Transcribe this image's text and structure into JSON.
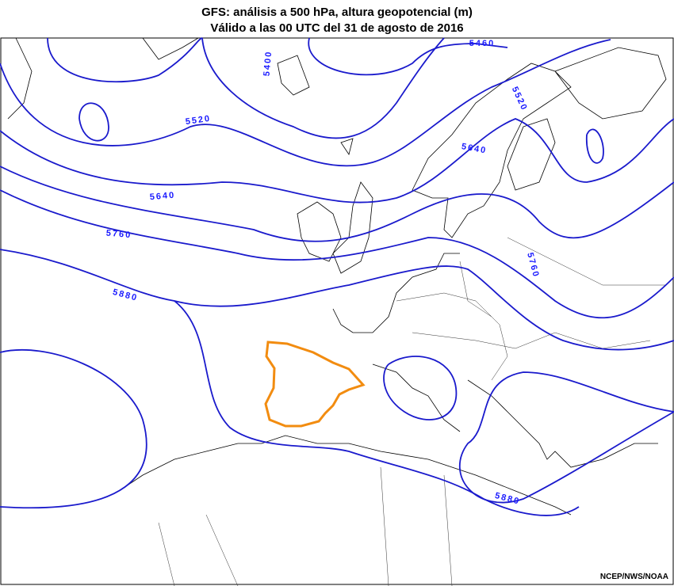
{
  "title": {
    "line1": "GFS: análisis a 500 hPa, altura geopotencial (m)",
    "line2": "Válido a las 00 UTC del 31 de agosto de 2016"
  },
  "contour_labels": [
    5400,
    5460,
    5520,
    5520,
    5640,
    5640,
    5760,
    5760,
    5880,
    5880
  ],
  "credit": "NCEP/NWS/NOAA"
}
